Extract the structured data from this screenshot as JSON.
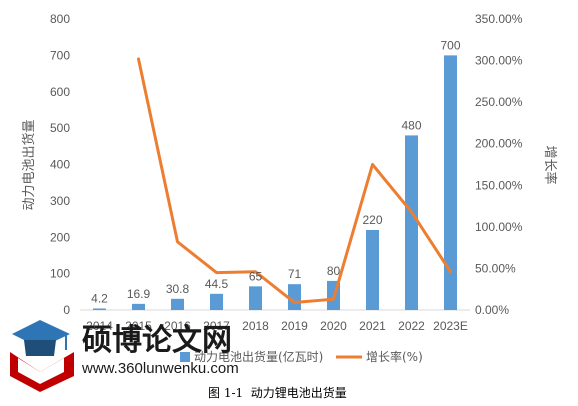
{
  "chart_data": {
    "type": "bar+line",
    "categories": [
      "2014",
      "2015",
      "2016",
      "2017",
      "2018",
      "2019",
      "2020",
      "2021",
      "2022",
      "2023E"
    ],
    "series": [
      {
        "name": "动力电池出货量(亿瓦时)",
        "type": "bar",
        "axis": "left",
        "values": [
          4.2,
          16.9,
          30.8,
          44.5,
          65,
          71,
          80,
          220,
          480,
          700
        ],
        "labels": [
          "4.2",
          "16.9",
          "30.8",
          "44.5",
          "65",
          "71",
          "80",
          "220",
          "480",
          "700"
        ],
        "color": "#5B9BD5"
      },
      {
        "name": "增长率(%)",
        "type": "line",
        "axis": "right",
        "values": [
          null,
          302,
          82,
          45,
          46,
          9,
          13,
          175,
          118,
          46
        ],
        "color": "#ED7D31"
      }
    ],
    "ylabel": "动力电池出货量",
    "y2label": "增长率",
    "ylim": [
      0,
      800
    ],
    "y2lim": [
      0,
      350
    ],
    "yticks": [
      "0",
      "100",
      "200",
      "300",
      "400",
      "500",
      "600",
      "700",
      "800"
    ],
    "y2ticks": [
      "0.00%",
      "50.00%",
      "100.00%",
      "150.00%",
      "200.00%",
      "250.00%",
      "300.00%",
      "350.00%"
    ],
    "legend": "bottom",
    "grid": false
  },
  "caption": "图 1-1  动力锂电池出货量",
  "watermark": {
    "title": "硕博论文网",
    "url": "www.360lunwenku.com",
    "icon": "graduation-cap-icon"
  }
}
